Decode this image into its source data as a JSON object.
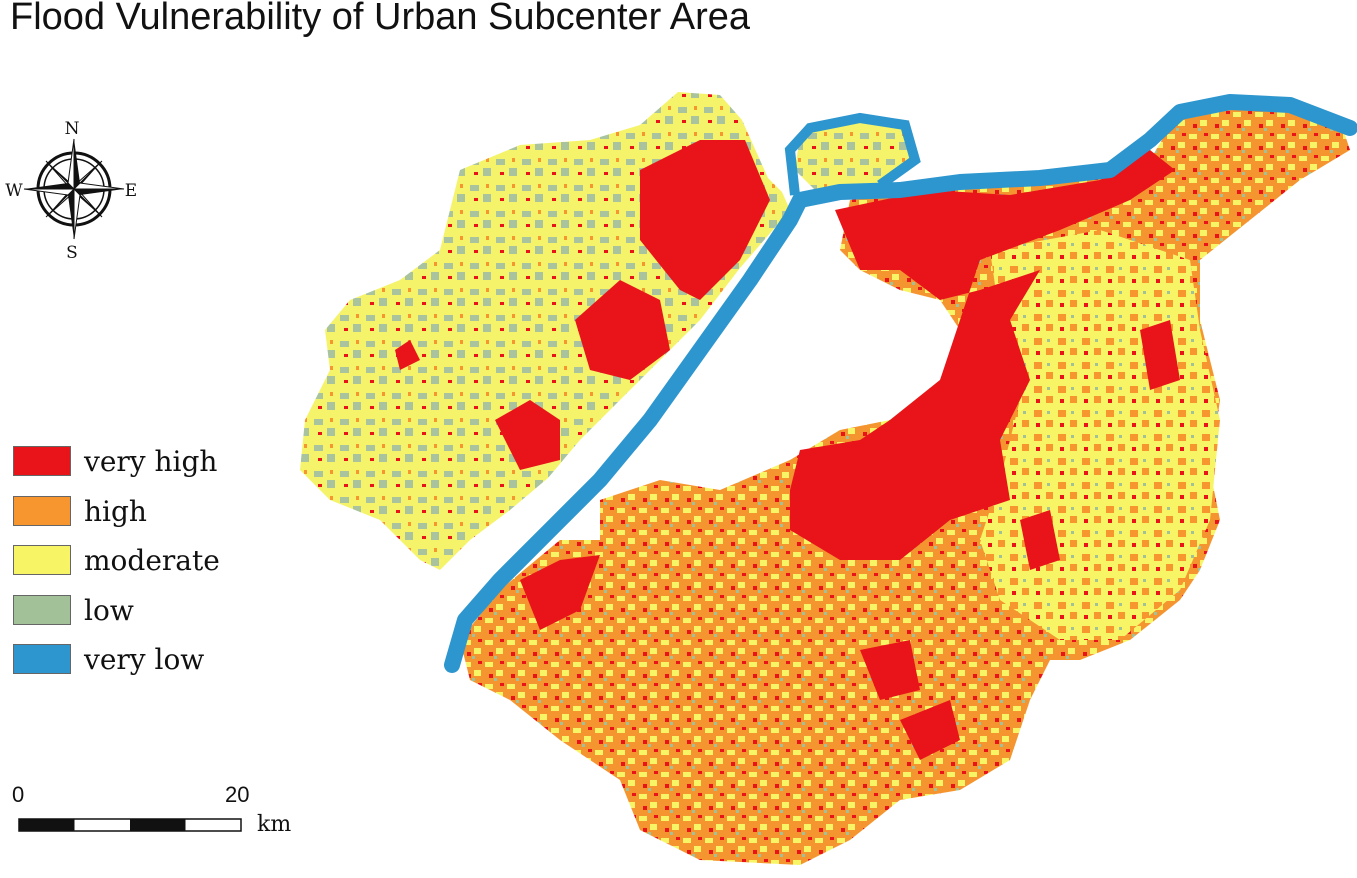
{
  "title": "Flood Vulnerability of Urban Subcenter Area",
  "compass": {
    "n": "N",
    "s": "S",
    "e": "E",
    "w": "W"
  },
  "legend": [
    {
      "label": "very high",
      "color": "#e8141a"
    },
    {
      "label": "high",
      "color": "#f7952f"
    },
    {
      "label": "moderate",
      "color": "#f7f566"
    },
    {
      "label": "low",
      "color": "#a3c199"
    },
    {
      "label": "very low",
      "color": "#2d96cf"
    }
  ],
  "scale_bar": {
    "start": "0",
    "end": "20",
    "unit": "km"
  }
}
